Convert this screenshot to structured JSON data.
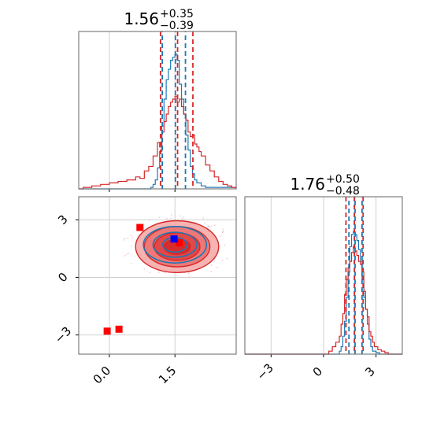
{
  "chart_data": {
    "type": "corner-plot",
    "colors": {
      "red": "#d62728",
      "blue": "#1f77b4",
      "red_fill": "#f08f8c",
      "marker_red": "#ff0000",
      "marker_blue": "#0000ff"
    },
    "param1_hist": {
      "title": {
        "value": "1.56",
        "upper": "+0.35",
        "lower": "−0.39"
      },
      "xlim": [
        -0.7,
        2.9
      ],
      "quantiles_red": [
        1.17,
        1.56,
        1.91
      ],
      "quantiles_blue": [
        1.21,
        1.51,
        1.74
      ],
      "red_hist": [
        [
          -0.7,
          0
        ],
        [
          -0.6,
          0.01
        ],
        [
          -0.4,
          0.02
        ],
        [
          -0.2,
          0.03
        ],
        [
          0.0,
          0.04
        ],
        [
          0.2,
          0.05
        ],
        [
          0.4,
          0.06
        ],
        [
          0.6,
          0.08
        ],
        [
          0.7,
          0.07
        ],
        [
          0.8,
          0.12
        ],
        [
          0.9,
          0.15
        ],
        [
          1.0,
          0.22
        ],
        [
          1.1,
          0.31
        ],
        [
          1.15,
          0.28
        ],
        [
          1.2,
          0.38
        ],
        [
          1.25,
          0.45
        ],
        [
          1.3,
          0.5
        ],
        [
          1.35,
          0.55
        ],
        [
          1.4,
          0.58
        ],
        [
          1.45,
          0.6
        ],
        [
          1.5,
          0.62
        ],
        [
          1.55,
          0.58
        ],
        [
          1.6,
          0.6
        ],
        [
          1.65,
          0.55
        ],
        [
          1.7,
          0.5
        ],
        [
          1.75,
          0.46
        ],
        [
          1.8,
          0.38
        ],
        [
          1.85,
          0.35
        ],
        [
          1.9,
          0.36
        ],
        [
          1.95,
          0.3
        ],
        [
          2.0,
          0.28
        ],
        [
          2.05,
          0.25
        ],
        [
          2.1,
          0.22
        ],
        [
          2.2,
          0.16
        ],
        [
          2.3,
          0.12
        ],
        [
          2.4,
          0.08
        ],
        [
          2.5,
          0.05
        ],
        [
          2.6,
          0.03
        ],
        [
          2.7,
          0.02
        ],
        [
          2.8,
          0.01
        ],
        [
          2.9,
          0
        ]
      ],
      "blue_hist": [
        [
          -0.7,
          0
        ],
        [
          0.9,
          0
        ],
        [
          0.95,
          0.01
        ],
        [
          1.0,
          0.03
        ],
        [
          1.05,
          0.06
        ],
        [
          1.1,
          0.14
        ],
        [
          1.15,
          0.25
        ],
        [
          1.2,
          0.42
        ],
        [
          1.25,
          0.6
        ],
        [
          1.3,
          0.73
        ],
        [
          1.35,
          0.8
        ],
        [
          1.4,
          0.86
        ],
        [
          1.45,
          0.88
        ],
        [
          1.5,
          0.9
        ],
        [
          1.55,
          0.86
        ],
        [
          1.6,
          0.7
        ],
        [
          1.65,
          0.6
        ],
        [
          1.7,
          0.5
        ],
        [
          1.75,
          0.36
        ],
        [
          1.8,
          0.26
        ],
        [
          1.85,
          0.15
        ],
        [
          1.9,
          0.1
        ],
        [
          1.95,
          0.06
        ],
        [
          2.0,
          0.04
        ],
        [
          2.1,
          0.02
        ],
        [
          2.2,
          0.01
        ],
        [
          2.9,
          0
        ]
      ]
    },
    "param2_hist": {
      "title": {
        "value": "1.76",
        "upper": "+0.50",
        "lower": "−0.48"
      },
      "xlim": [
        -4.5,
        4.5
      ],
      "x_ticks": [
        -3,
        0,
        3
      ],
      "x_tick_labels": [
        "−3",
        "0",
        "3"
      ],
      "quantiles_red": [
        1.28,
        1.76,
        2.26
      ],
      "quantiles_blue": [
        1.45,
        1.8,
        2.2
      ],
      "red_hist": [
        [
          -4.5,
          0
        ],
        [
          0.2,
          0
        ],
        [
          0.3,
          0.02
        ],
        [
          0.5,
          0.05
        ],
        [
          0.7,
          0.08
        ],
        [
          0.9,
          0.12
        ],
        [
          1.0,
          0.2
        ],
        [
          1.1,
          0.27
        ],
        [
          1.2,
          0.4
        ],
        [
          1.3,
          0.5
        ],
        [
          1.4,
          0.58
        ],
        [
          1.5,
          0.62
        ],
        [
          1.6,
          0.68
        ],
        [
          1.7,
          0.72
        ],
        [
          1.8,
          0.69
        ],
        [
          1.9,
          0.66
        ],
        [
          2.0,
          0.62
        ],
        [
          2.1,
          0.6
        ],
        [
          2.2,
          0.55
        ],
        [
          2.3,
          0.42
        ],
        [
          2.4,
          0.3
        ],
        [
          2.5,
          0.25
        ],
        [
          2.6,
          0.15
        ],
        [
          2.7,
          0.12
        ],
        [
          2.8,
          0.08
        ],
        [
          2.9,
          0.05
        ],
        [
          3.1,
          0.03
        ],
        [
          3.3,
          0.02
        ],
        [
          3.5,
          0.01
        ],
        [
          3.7,
          0
        ],
        [
          4.5,
          0
        ]
      ],
      "blue_hist": [
        [
          -4.5,
          0
        ],
        [
          0.8,
          0
        ],
        [
          0.9,
          0.02
        ],
        [
          1.0,
          0.05
        ],
        [
          1.1,
          0.12
        ],
        [
          1.2,
          0.22
        ],
        [
          1.3,
          0.38
        ],
        [
          1.4,
          0.55
        ],
        [
          1.5,
          0.72
        ],
        [
          1.6,
          0.8
        ],
        [
          1.7,
          0.82
        ],
        [
          1.8,
          0.8
        ],
        [
          1.9,
          0.76
        ],
        [
          2.0,
          0.7
        ],
        [
          2.1,
          0.62
        ],
        [
          2.2,
          0.5
        ],
        [
          2.3,
          0.38
        ],
        [
          2.4,
          0.3
        ],
        [
          2.5,
          0.2
        ],
        [
          2.6,
          0.1
        ],
        [
          2.7,
          0.05
        ],
        [
          2.8,
          0.02
        ],
        [
          3.0,
          0.01
        ],
        [
          3.2,
          0
        ],
        [
          4.5,
          0
        ]
      ]
    },
    "joint": {
      "xlim": [
        -0.7,
        2.9
      ],
      "ylim": [
        -4.0,
        4.2
      ],
      "x_ticks": [
        0.0,
        1.5
      ],
      "x_tick_labels": [
        "0.0",
        "1.5"
      ],
      "y_ticks": [
        -3,
        0,
        3
      ],
      "y_tick_labels": [
        "−3",
        "0",
        "3"
      ],
      "red_contours": [
        {
          "center": [
            1.55,
            1.6
          ],
          "rx": 0.95,
          "ry": 1.35,
          "fill": "#f4a6a4"
        },
        {
          "center": [
            1.55,
            1.6
          ],
          "rx": 0.75,
          "ry": 1.05,
          "fill": "#ea6f6c"
        },
        {
          "center": [
            1.55,
            1.6
          ],
          "rx": 0.52,
          "ry": 0.72,
          "fill": "#e0403e"
        },
        {
          "center": [
            1.55,
            1.6
          ],
          "rx": 0.3,
          "ry": 0.4,
          "fill": "#d62728"
        }
      ],
      "blue_contours": [
        {
          "center": [
            1.5,
            1.7
          ],
          "rx": 0.72,
          "ry": 0.95
        },
        {
          "center": [
            1.5,
            1.7
          ],
          "rx": 0.5,
          "ry": 0.65
        },
        {
          "center": [
            1.5,
            1.7
          ],
          "rx": 0.28,
          "ry": 0.38
        }
      ],
      "red_markers": [
        [
          0.7,
          2.6
        ],
        [
          -0.05,
          -2.8
        ],
        [
          0.22,
          -2.7
        ],
        [
          1.6,
          1.8
        ]
      ],
      "blue_markers": [
        [
          1.48,
          2.0
        ]
      ]
    }
  }
}
